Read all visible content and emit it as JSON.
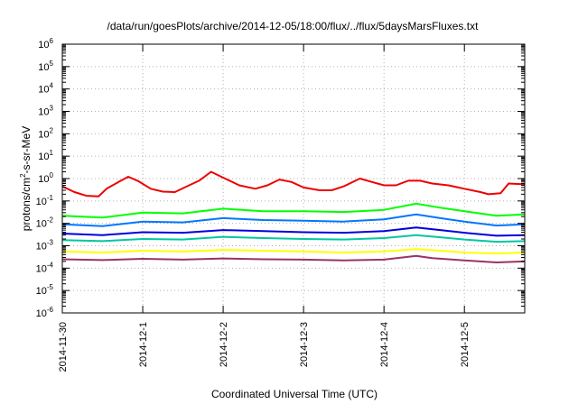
{
  "chart_data": {
    "type": "line",
    "title": "/data/run/goesPlots/archive/2014-12-05/18:00/flux/../flux/5daysMarsFluxes.txt",
    "xlabel": "Coordinated Universal Time (UTC)",
    "ylabel": "protons/cm2-s-sr-MeV",
    "yscale": "log",
    "ylim": [
      1e-06,
      1000000.0
    ],
    "xlim": [
      "2014-11-30T00:00",
      "2014-12-05T18:00"
    ],
    "grid": true,
    "legend": "none",
    "x_ticks": [
      "2014-11-30",
      "2014-12-1",
      "2014-12-2",
      "2014-12-3",
      "2014-12-4",
      "2014-12-5"
    ],
    "y_ticks": [
      {
        "base": "10",
        "exp": "6"
      },
      {
        "base": "10",
        "exp": "5"
      },
      {
        "base": "10",
        "exp": "4"
      },
      {
        "base": "10",
        "exp": "3"
      },
      {
        "base": "10",
        "exp": "2"
      },
      {
        "base": "10",
        "exp": "1"
      },
      {
        "base": "10",
        "exp": "0"
      },
      {
        "base": "10",
        "exp": "-1"
      },
      {
        "base": "10",
        "exp": "-2"
      },
      {
        "base": "10",
        "exp": "-3"
      },
      {
        "base": "10",
        "exp": "-4"
      },
      {
        "base": "10",
        "exp": "-5"
      },
      {
        "base": "10",
        "exp": "-6"
      }
    ],
    "x_unit": "days since 2014-11-30 00:00 UTC",
    "series": [
      {
        "color": "#ee0000",
        "values": [
          [
            0.0,
            0.45
          ],
          [
            0.15,
            0.25
          ],
          [
            0.3,
            0.17
          ],
          [
            0.45,
            0.16
          ],
          [
            0.55,
            0.35
          ],
          [
            0.7,
            0.7
          ],
          [
            0.82,
            1.2
          ],
          [
            0.95,
            0.75
          ],
          [
            1.1,
            0.35
          ],
          [
            1.25,
            0.26
          ],
          [
            1.4,
            0.25
          ],
          [
            1.55,
            0.45
          ],
          [
            1.7,
            0.8
          ],
          [
            1.85,
            2.0
          ],
          [
            2.0,
            1.1
          ],
          [
            2.2,
            0.5
          ],
          [
            2.4,
            0.35
          ],
          [
            2.55,
            0.5
          ],
          [
            2.7,
            0.9
          ],
          [
            2.85,
            0.7
          ],
          [
            3.0,
            0.4
          ],
          [
            3.2,
            0.3
          ],
          [
            3.35,
            0.3
          ],
          [
            3.5,
            0.45
          ],
          [
            3.7,
            1.0
          ],
          [
            3.85,
            0.7
          ],
          [
            4.0,
            0.5
          ],
          [
            4.15,
            0.5
          ],
          [
            4.3,
            0.8
          ],
          [
            4.45,
            0.8
          ],
          [
            4.6,
            0.6
          ],
          [
            4.8,
            0.5
          ],
          [
            5.0,
            0.35
          ],
          [
            5.2,
            0.25
          ],
          [
            5.3,
            0.2
          ],
          [
            5.45,
            0.22
          ],
          [
            5.55,
            0.6
          ],
          [
            5.75,
            0.55
          ]
        ]
      },
      {
        "color": "#00ff00",
        "values": [
          [
            0.0,
            0.022
          ],
          [
            0.5,
            0.018
          ],
          [
            1.0,
            0.03
          ],
          [
            1.5,
            0.028
          ],
          [
            2.0,
            0.045
          ],
          [
            2.5,
            0.035
          ],
          [
            3.0,
            0.035
          ],
          [
            3.5,
            0.032
          ],
          [
            4.0,
            0.04
          ],
          [
            4.4,
            0.075
          ],
          [
            4.7,
            0.05
          ],
          [
            5.0,
            0.035
          ],
          [
            5.4,
            0.022
          ],
          [
            5.75,
            0.025
          ]
        ]
      },
      {
        "color": "#0077ff",
        "values": [
          [
            0.0,
            0.009
          ],
          [
            0.5,
            0.0075
          ],
          [
            1.0,
            0.012
          ],
          [
            1.5,
            0.011
          ],
          [
            2.0,
            0.017
          ],
          [
            2.5,
            0.014
          ],
          [
            3.0,
            0.013
          ],
          [
            3.5,
            0.012
          ],
          [
            4.0,
            0.015
          ],
          [
            4.4,
            0.025
          ],
          [
            4.7,
            0.017
          ],
          [
            5.0,
            0.012
          ],
          [
            5.4,
            0.008
          ],
          [
            5.75,
            0.009
          ]
        ]
      },
      {
        "color": "#0000dd",
        "values": [
          [
            0.0,
            0.0035
          ],
          [
            0.5,
            0.003
          ],
          [
            1.0,
            0.004
          ],
          [
            1.5,
            0.0038
          ],
          [
            2.0,
            0.005
          ],
          [
            2.5,
            0.0045
          ],
          [
            3.0,
            0.004
          ],
          [
            3.5,
            0.0038
          ],
          [
            4.0,
            0.0045
          ],
          [
            4.4,
            0.0065
          ],
          [
            4.7,
            0.005
          ],
          [
            5.0,
            0.0038
          ],
          [
            5.4,
            0.0028
          ],
          [
            5.75,
            0.003
          ]
        ]
      },
      {
        "color": "#00c8a0",
        "values": [
          [
            0.0,
            0.0018
          ],
          [
            0.5,
            0.0016
          ],
          [
            1.0,
            0.002
          ],
          [
            1.5,
            0.0019
          ],
          [
            2.0,
            0.0025
          ],
          [
            2.5,
            0.0022
          ],
          [
            3.0,
            0.002
          ],
          [
            3.5,
            0.0019
          ],
          [
            4.0,
            0.0022
          ],
          [
            4.4,
            0.003
          ],
          [
            4.7,
            0.0024
          ],
          [
            5.0,
            0.0019
          ],
          [
            5.4,
            0.0015
          ],
          [
            5.75,
            0.0016
          ]
        ]
      },
      {
        "color": "#ffff00",
        "values": [
          [
            0.0,
            0.00055
          ],
          [
            0.5,
            0.0005
          ],
          [
            1.0,
            0.0006
          ],
          [
            1.5,
            0.00055
          ],
          [
            2.0,
            0.00065
          ],
          [
            2.5,
            0.0006
          ],
          [
            3.0,
            0.00055
          ],
          [
            3.5,
            0.0005
          ],
          [
            4.0,
            0.00055
          ],
          [
            4.4,
            0.0007
          ],
          [
            4.7,
            0.0006
          ],
          [
            5.0,
            0.0005
          ],
          [
            5.4,
            0.00045
          ],
          [
            5.75,
            0.0005
          ]
        ]
      },
      {
        "color": "#993366",
        "values": [
          [
            0.0,
            0.00025
          ],
          [
            0.5,
            0.00023
          ],
          [
            1.0,
            0.00026
          ],
          [
            1.5,
            0.00024
          ],
          [
            2.0,
            0.00027
          ],
          [
            2.5,
            0.00025
          ],
          [
            3.0,
            0.00024
          ],
          [
            3.5,
            0.00022
          ],
          [
            4.0,
            0.00024
          ],
          [
            4.4,
            0.00035
          ],
          [
            4.6,
            0.00028
          ],
          [
            5.0,
            0.00022
          ],
          [
            5.4,
            0.00018
          ],
          [
            5.75,
            0.0002
          ]
        ]
      }
    ]
  }
}
